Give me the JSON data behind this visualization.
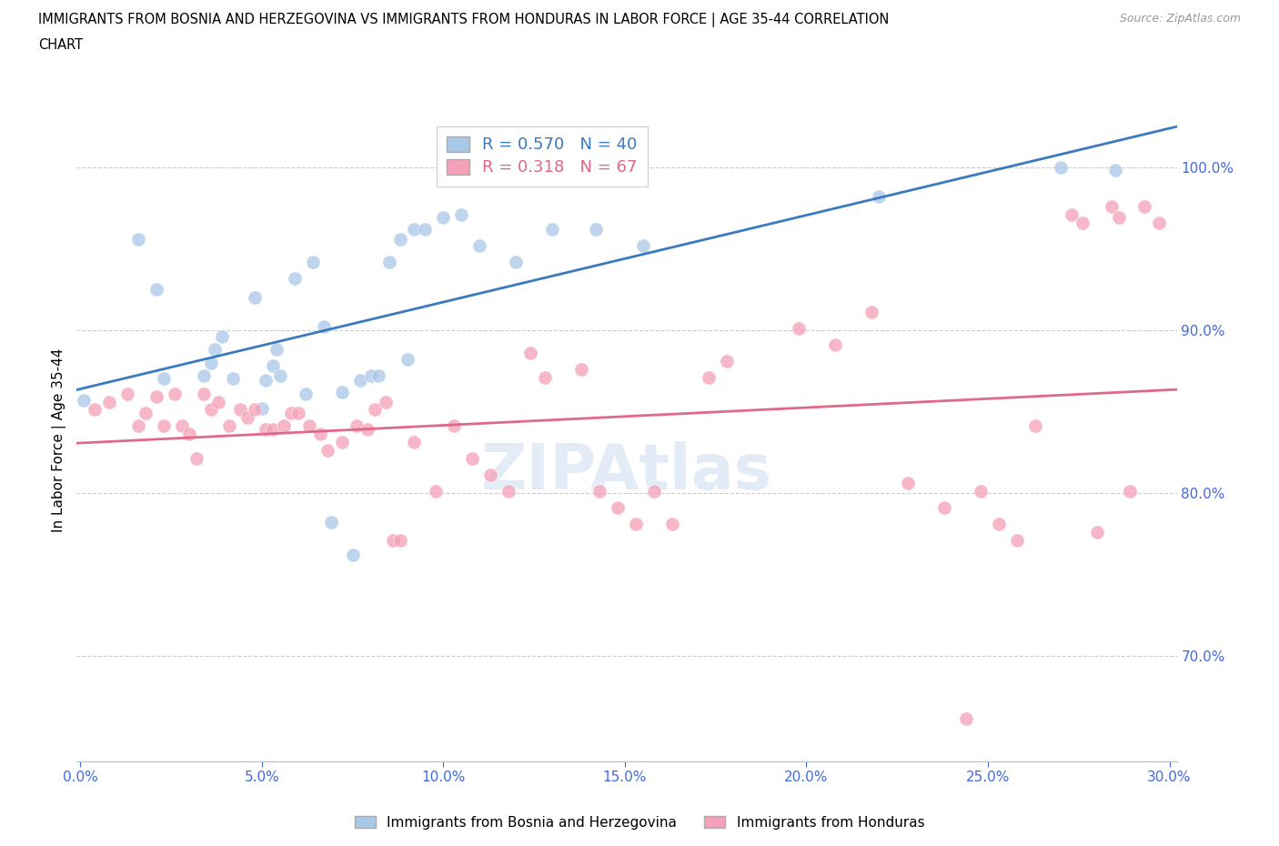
{
  "title_line1": "IMMIGRANTS FROM BOSNIA AND HERZEGOVINA VS IMMIGRANTS FROM HONDURAS IN LABOR FORCE | AGE 35-44 CORRELATION",
  "title_line2": "CHART",
  "source": "Source: ZipAtlas.com",
  "ylabel": "In Labor Force | Age 35-44",
  "xlim": [
    -0.001,
    0.302
  ],
  "ylim": [
    0.635,
    1.03
  ],
  "x_ticks": [
    0.0,
    0.05,
    0.1,
    0.15,
    0.2,
    0.25,
    0.3
  ],
  "y_ticks": [
    0.7,
    0.8,
    0.9,
    1.0
  ],
  "bosnia_color": "#a8c8e8",
  "honduras_color": "#f4a0b8",
  "bosnia_line_color": "#3a7bbf",
  "honduras_line_color": "#e06888",
  "bosnia_R": 0.57,
  "bosnia_N": 40,
  "honduras_R": 0.318,
  "honduras_N": 67,
  "tick_color": "#4169e1",
  "grid_color": "#cccccc",
  "bosnia_x": [
    0.001,
    0.016,
    0.021,
    0.023,
    0.034,
    0.036,
    0.037,
    0.039,
    0.042,
    0.048,
    0.05,
    0.051,
    0.053,
    0.054,
    0.055,
    0.059,
    0.062,
    0.064,
    0.067,
    0.069,
    0.072,
    0.075,
    0.077,
    0.08,
    0.082,
    0.085,
    0.088,
    0.09,
    0.092,
    0.095,
    0.1,
    0.105,
    0.11,
    0.12,
    0.13,
    0.142,
    0.155,
    0.22,
    0.27,
    0.285
  ],
  "bosnia_y": [
    0.857,
    0.956,
    0.925,
    0.87,
    0.872,
    0.88,
    0.888,
    0.896,
    0.87,
    0.92,
    0.852,
    0.869,
    0.878,
    0.888,
    0.872,
    0.932,
    0.861,
    0.942,
    0.902,
    0.782,
    0.862,
    0.762,
    0.869,
    0.872,
    0.872,
    0.942,
    0.956,
    0.882,
    0.962,
    0.962,
    0.969,
    0.971,
    0.952,
    0.942,
    0.962,
    0.962,
    0.952,
    0.982,
    1.0,
    0.998
  ],
  "honduras_x": [
    0.004,
    0.008,
    0.013,
    0.016,
    0.018,
    0.021,
    0.023,
    0.026,
    0.028,
    0.03,
    0.032,
    0.034,
    0.036,
    0.038,
    0.041,
    0.044,
    0.046,
    0.048,
    0.051,
    0.053,
    0.056,
    0.058,
    0.06,
    0.063,
    0.066,
    0.068,
    0.072,
    0.076,
    0.079,
    0.081,
    0.084,
    0.086,
    0.088,
    0.092,
    0.098,
    0.103,
    0.108,
    0.113,
    0.118,
    0.124,
    0.128,
    0.138,
    0.143,
    0.148,
    0.153,
    0.158,
    0.163,
    0.173,
    0.178,
    0.198,
    0.208,
    0.218,
    0.228,
    0.238,
    0.244,
    0.248,
    0.253,
    0.258,
    0.263,
    0.273,
    0.276,
    0.28,
    0.284,
    0.286,
    0.289,
    0.293,
    0.297
  ],
  "honduras_y": [
    0.851,
    0.856,
    0.861,
    0.841,
    0.849,
    0.859,
    0.841,
    0.861,
    0.841,
    0.836,
    0.821,
    0.861,
    0.851,
    0.856,
    0.841,
    0.851,
    0.846,
    0.851,
    0.839,
    0.839,
    0.841,
    0.849,
    0.849,
    0.841,
    0.836,
    0.826,
    0.831,
    0.841,
    0.839,
    0.851,
    0.856,
    0.771,
    0.771,
    0.831,
    0.801,
    0.841,
    0.821,
    0.811,
    0.801,
    0.886,
    0.871,
    0.876,
    0.801,
    0.791,
    0.781,
    0.801,
    0.781,
    0.871,
    0.881,
    0.901,
    0.891,
    0.911,
    0.806,
    0.791,
    0.661,
    0.801,
    0.781,
    0.771,
    0.841,
    0.971,
    0.966,
    0.776,
    0.976,
    0.969,
    0.801,
    0.976,
    0.966
  ]
}
